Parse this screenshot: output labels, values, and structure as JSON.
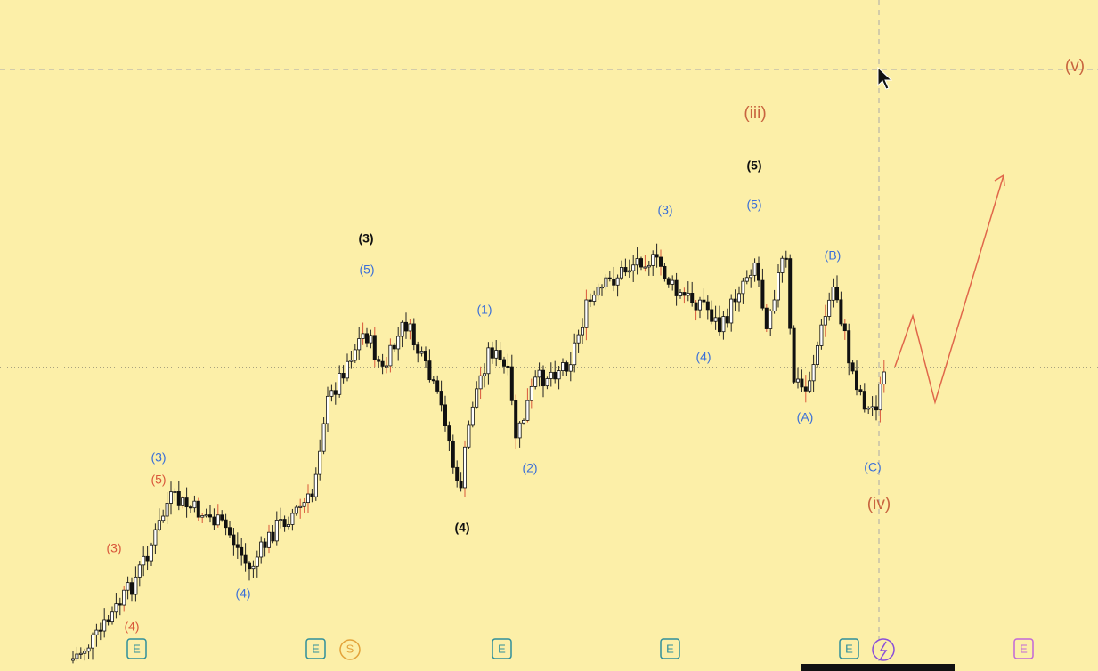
{
  "wave_labels": [
    "(3)",
    "(4)",
    "(5)",
    "(3)",
    "(4)",
    "(5)",
    "(1)",
    "(2)",
    "(3)",
    "(4)",
    "(5)",
    "(A)",
    "(B)",
    "(C)",
    "(5)",
    "(3)",
    "(4)",
    "(iii)",
    "(iv)",
    "(v)"
  ],
  "event_badges": [
    "E",
    "E",
    "S",
    "E",
    "E",
    "E",
    "E"
  ]
}
